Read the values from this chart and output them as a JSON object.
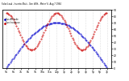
{
  "title": "Solar/Load - Inverter/Batt - Gen kWh - Meter %  Aug 7 1994",
  "legend1": "Sun Altitude",
  "legend2": "Sun Incidence",
  "line1_color": "#0000cc",
  "line2_color": "#cc0000",
  "background_color": "#ffffff",
  "grid_color": "#aaaaaa",
  "x_labels": [
    "5a",
    "6a",
    "7a",
    "8a",
    "9a",
    "10a",
    "11a",
    "12p",
    "1p",
    "2p",
    "3p",
    "4p",
    "5p",
    "6p",
    "7p"
  ],
  "y_right_labels": [
    "0",
    "10",
    "20",
    "30",
    "40",
    "50",
    "60",
    "70",
    "80",
    "90"
  ],
  "ylim": [
    0,
    90
  ],
  "n_points": 200
}
